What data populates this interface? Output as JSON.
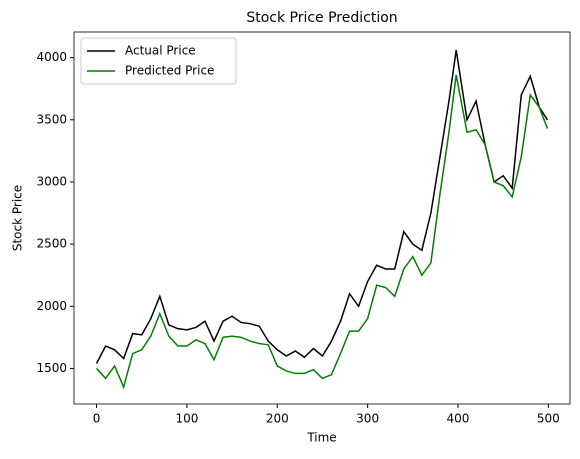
{
  "chart_data": {
    "type": "line",
    "title": "Stock Price Prediction",
    "xlabel": "Time",
    "ylabel": "Stock Price",
    "x": [
      0,
      10,
      20,
      30,
      40,
      50,
      60,
      70,
      80,
      90,
      100,
      110,
      120,
      130,
      140,
      150,
      160,
      170,
      180,
      190,
      200,
      210,
      220,
      230,
      240,
      250,
      260,
      270,
      280,
      290,
      300,
      310,
      320,
      330,
      340,
      350,
      360,
      370,
      380,
      390,
      398,
      410,
      420,
      430,
      440,
      450,
      460,
      470,
      480,
      490,
      499
    ],
    "series": [
      {
        "name": "Actual Price",
        "color": "#000000",
        "values": [
          1540,
          1680,
          1650,
          1580,
          1780,
          1770,
          1900,
          2080,
          1850,
          1820,
          1810,
          1830,
          1880,
          1720,
          1880,
          1920,
          1870,
          1860,
          1840,
          1720,
          1650,
          1600,
          1640,
          1590,
          1660,
          1600,
          1720,
          1880,
          2100,
          2000,
          2200,
          2330,
          2300,
          2300,
          2600,
          2500,
          2450,
          2750,
          3200,
          3650,
          4060,
          3500,
          3650,
          3300,
          3000,
          3050,
          2950,
          3700,
          3850,
          3600,
          3500
        ]
      },
      {
        "name": "Predicted Price",
        "color": "#008000",
        "values": [
          1500,
          1420,
          1520,
          1350,
          1620,
          1650,
          1760,
          1940,
          1760,
          1680,
          1680,
          1730,
          1700,
          1570,
          1750,
          1760,
          1750,
          1720,
          1700,
          1690,
          1520,
          1480,
          1460,
          1460,
          1490,
          1420,
          1450,
          1620,
          1800,
          1800,
          1900,
          2170,
          2150,
          2080,
          2300,
          2400,
          2250,
          2350,
          2900,
          3400,
          3860,
          3400,
          3420,
          3300,
          3000,
          2970,
          2880,
          3200,
          3700,
          3600,
          3430
        ]
      }
    ],
    "xlim": [
      -24.95,
      523.95
    ],
    "xticks": [
      0,
      100,
      200,
      300,
      400,
      500
    ],
    "ylim": [
      1214,
      4206
    ],
    "yticks": [
      1500,
      2000,
      2500,
      3000,
      3500,
      4000
    ],
    "legend": "upper left"
  }
}
